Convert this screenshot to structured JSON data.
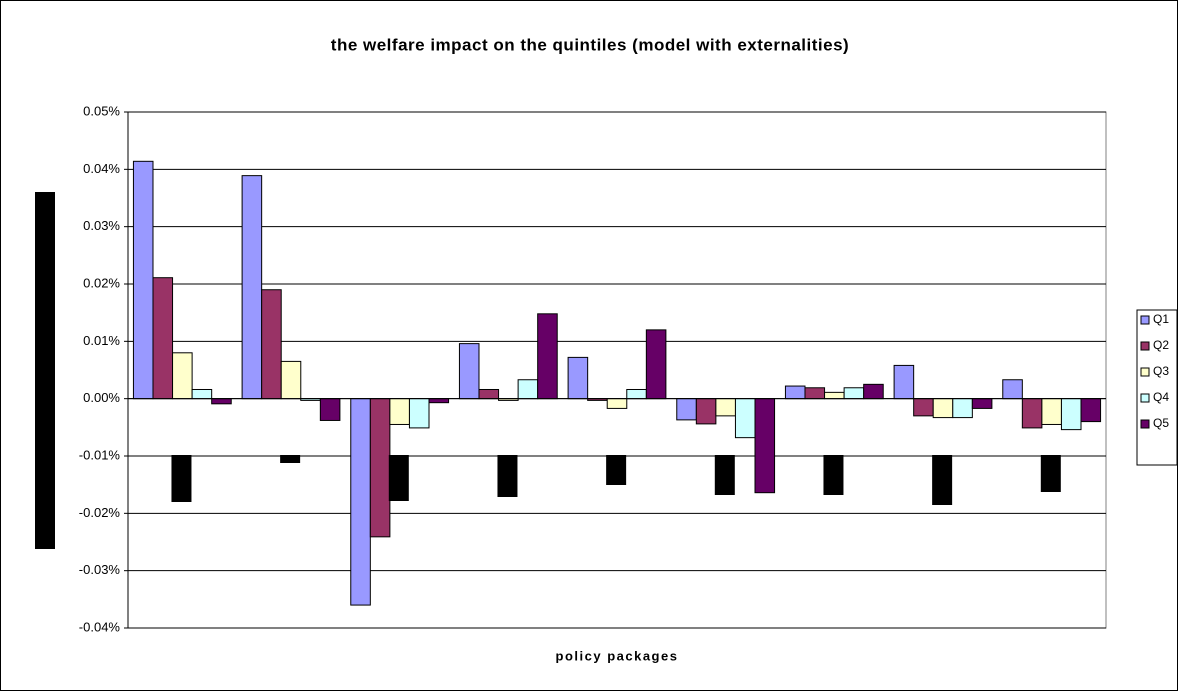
{
  "chart_data": {
    "type": "bar",
    "title": "the welfare impact on the quintiles (model with externalities)",
    "x_label": "policy packages",
    "categories": [
      null,
      null,
      null,
      null,
      null,
      null,
      null,
      null,
      null
    ],
    "series": [
      {
        "name": "Q1",
        "color": "#9999ff",
        "values": [
          0.0414,
          0.0389,
          -0.036,
          0.0096,
          0.0072,
          -0.0037,
          0.0022,
          0.0058,
          0.0033
        ]
      },
      {
        "name": "Q2",
        "color": "#993366",
        "values": [
          0.0211,
          0.019,
          -0.0241,
          0.0016,
          -0.0003,
          -0.0044,
          0.0019,
          -0.003,
          -0.0051
        ]
      },
      {
        "name": "Q3",
        "color": "#ffffcc",
        "values": [
          0.008,
          0.0065,
          -0.0045,
          -0.0003,
          -0.0017,
          -0.003,
          0.0011,
          -0.0033,
          -0.0045
        ]
      },
      {
        "name": "Q4",
        "color": "#ccffff",
        "values": [
          0.0016,
          -0.0003,
          -0.0051,
          0.0033,
          0.0016,
          -0.0068,
          0.0019,
          -0.0033,
          -0.0054
        ]
      },
      {
        "name": "Q5",
        "color": "#660066",
        "values": [
          -0.0009,
          -0.0038,
          -0.0007,
          0.0148,
          0.012,
          -0.0164,
          0.0025,
          -0.0017,
          -0.004
        ]
      }
    ],
    "ylim": [
      -0.04,
      0.05
    ],
    "yticks": [
      {
        "value": -0.04,
        "label": "-0.04%"
      },
      {
        "value": -0.03,
        "label": "-0.03%"
      },
      {
        "value": -0.02,
        "label": "-0.02%"
      },
      {
        "value": -0.01,
        "label": "-0.01%"
      },
      {
        "value": 0,
        "label": "0.00%"
      },
      {
        "value": 0.01,
        "label": "0.01%"
      },
      {
        "value": 0.02,
        "label": "0.02%"
      },
      {
        "value": 0.03,
        "label": "0.03%"
      },
      {
        "value": 0.04,
        "label": "0.04%"
      },
      {
        "value": 0.05,
        "label": "0.05%"
      }
    ],
    "grid": true,
    "legend": "right"
  }
}
